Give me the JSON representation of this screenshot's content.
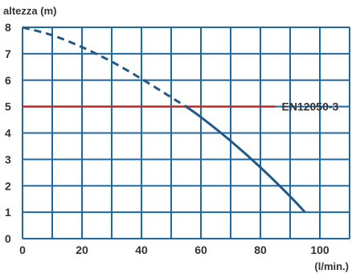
{
  "chart_data": {
    "type": "line",
    "ylabel": "altezza (m)",
    "xlabel": "(l/min.)",
    "xlim": [
      0,
      110
    ],
    "ylim": [
      0,
      8
    ],
    "x_ticks": [
      0,
      20,
      40,
      60,
      80,
      100
    ],
    "y_ticks": [
      0,
      1,
      2,
      3,
      4,
      5,
      6,
      7,
      8
    ],
    "grid": true,
    "series": [
      {
        "style": "dashed",
        "color": "#1f5a8b",
        "x": [
          0,
          10,
          20,
          30,
          40,
          50,
          55
        ],
        "y": [
          8.0,
          7.7,
          7.25,
          6.7,
          6.05,
          5.35,
          5.0
        ]
      },
      {
        "style": "solid",
        "color": "#1f5a8b",
        "x": [
          55,
          60,
          70,
          80,
          90,
          95
        ],
        "y": [
          5.0,
          4.6,
          3.7,
          2.7,
          1.6,
          1.0
        ]
      }
    ],
    "reference_line": {
      "y": 5,
      "x_range": [
        0,
        85
      ],
      "label": "EN12050-3",
      "color": "#c0272d"
    }
  },
  "colors": {
    "grid": "#1e6aa6",
    "curve": "#1f5a8b",
    "reference": "#c0272d",
    "text": "#333333"
  }
}
